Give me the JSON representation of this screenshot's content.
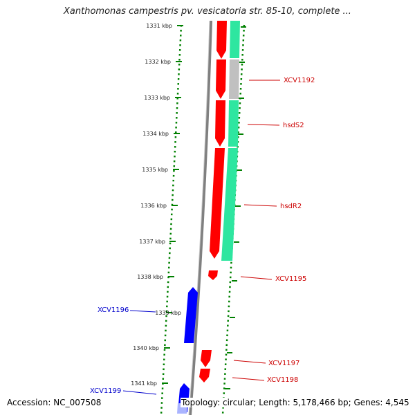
{
  "title": "Xanthomonas campestris pv. vesicatoria str. 85-10, complete ...",
  "ticks": [
    "1331 kbp",
    "1332 kbp",
    "1333 kbp",
    "1334 kbp",
    "1335 kbp",
    "1336 kbp",
    "1337 kbp",
    "1338 kbp",
    "1339 kbp",
    "1340 kbp",
    "1341 kbp"
  ],
  "gene_labels": {
    "xcv1192": "XCV1192",
    "hsds2": "hsdS2",
    "hsdr2": "hsdR2",
    "xcv1195": "XCV1195",
    "xcv1196": "XCV1196",
    "xcv1197": "XCV1197",
    "xcv1198": "XCV1198",
    "xcv1199": "XCV1199"
  },
  "footer": {
    "accession": "Accession: NC_007508",
    "summary": "Topology: circular; Length: 5,178,466 bp; Genes: 4,545"
  },
  "colors": {
    "forward_gene": "#ff0000",
    "reverse_gene": "#0000ff",
    "cds_track": "#2ee6a0",
    "pseudo_track": "#c0c0c0",
    "backbone": "#808080",
    "tick": "#008000",
    "label_forward": "#cc0000",
    "label_reverse": "#0000cc"
  }
}
